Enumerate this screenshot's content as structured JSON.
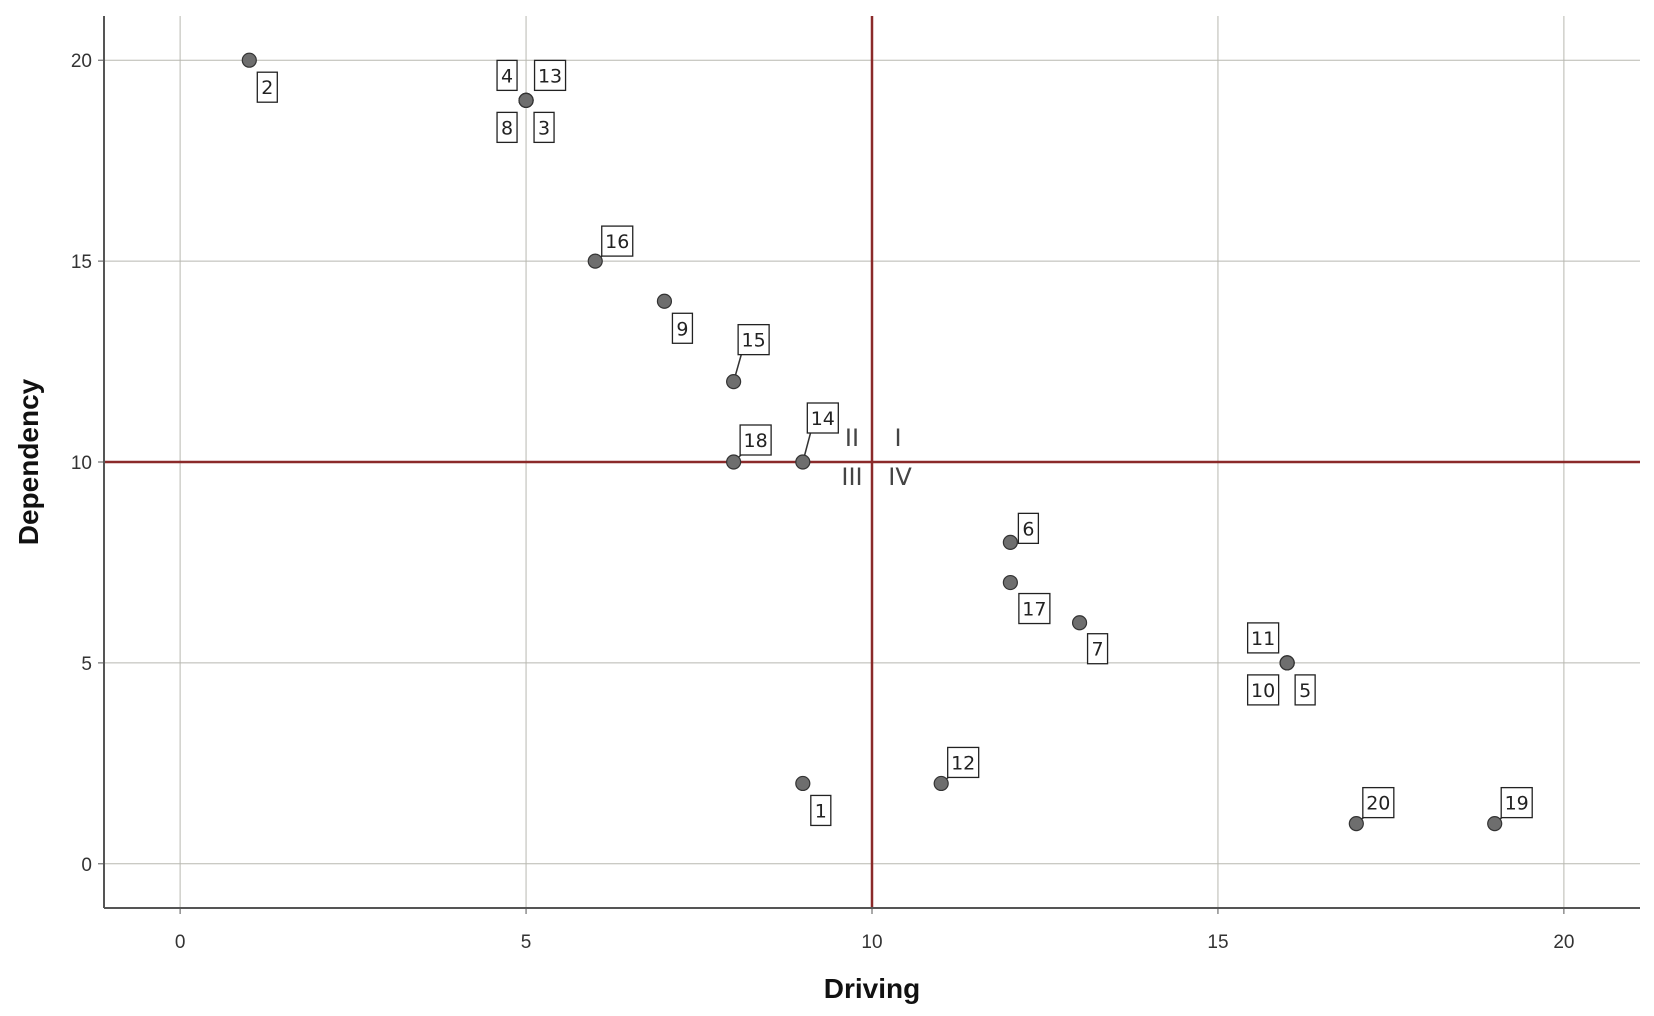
{
  "chart_data": {
    "type": "scatter",
    "title": "",
    "xlabel": "Driving",
    "ylabel": "Dependency",
    "xlim": [
      -1.1,
      21.1
    ],
    "ylim": [
      -1.1,
      21.1
    ],
    "xticks": [
      0,
      5,
      10,
      15,
      20
    ],
    "yticks": [
      0,
      5,
      10,
      15,
      20
    ],
    "grid": true,
    "reference_lines": {
      "x": 10,
      "y": 10,
      "color": "#8b2a2a"
    },
    "quadrant_labels": [
      "I",
      "II",
      "III",
      "IV"
    ],
    "points": [
      {
        "label": "1",
        "x": 9,
        "y": 2
      },
      {
        "label": "2",
        "x": 1,
        "y": 20
      },
      {
        "label": "3",
        "x": 5,
        "y": 19
      },
      {
        "label": "4",
        "x": 5,
        "y": 19
      },
      {
        "label": "5",
        "x": 16,
        "y": 5
      },
      {
        "label": "6",
        "x": 12,
        "y": 8
      },
      {
        "label": "7",
        "x": 13,
        "y": 6
      },
      {
        "label": "8",
        "x": 5,
        "y": 19
      },
      {
        "label": "9",
        "x": 7,
        "y": 14
      },
      {
        "label": "10",
        "x": 16,
        "y": 5
      },
      {
        "label": "11",
        "x": 16,
        "y": 5
      },
      {
        "label": "12",
        "x": 11,
        "y": 2
      },
      {
        "label": "13",
        "x": 5,
        "y": 19
      },
      {
        "label": "14",
        "x": 9,
        "y": 10
      },
      {
        "label": "15",
        "x": 8,
        "y": 12
      },
      {
        "label": "16",
        "x": 6,
        "y": 15
      },
      {
        "label": "17",
        "x": 12,
        "y": 7
      },
      {
        "label": "18",
        "x": 8,
        "y": 10
      },
      {
        "label": "19",
        "x": 19,
        "y": 1
      },
      {
        "label": "20",
        "x": 17,
        "y": 1
      }
    ],
    "colors": {
      "point": "#6e6e6e",
      "grid": "#b8b8b0",
      "axis": "#555555"
    }
  }
}
